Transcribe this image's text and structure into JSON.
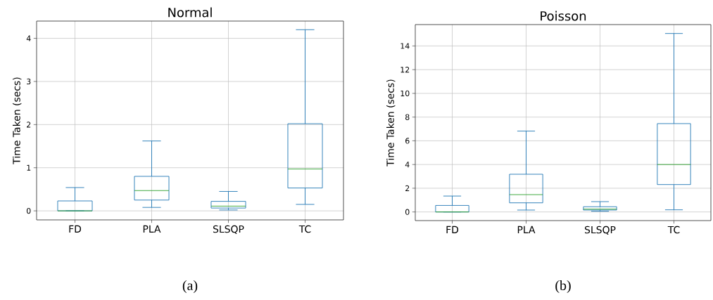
{
  "chart_data": [
    {
      "type": "box",
      "title": "Normal",
      "ylabel": "Time Taken (secs)",
      "categories": [
        "FD",
        "PLA",
        "SLSQP",
        "TC"
      ],
      "ylim": [
        -0.21,
        4.4
      ],
      "yticks": [
        0,
        1,
        2,
        3,
        4
      ],
      "grid": true,
      "annotations": [
        "(a)"
      ],
      "series": [
        {
          "color": "#1f77b4",
          "boxes": [
            {
              "low": 0,
              "q1": 0,
              "median": 0,
              "q3": 0.23,
              "high": 0.54
            },
            {
              "low": 0.08,
              "q1": 0.25,
              "median": 0.47,
              "q3": 0.8,
              "high": 1.62
            },
            {
              "low": 0.02,
              "q1": 0.065,
              "median": 0.11,
              "q3": 0.22,
              "high": 0.45
            },
            {
              "low": 0.15,
              "q1": 0.53,
              "median": 0.97,
              "q3": 2.02,
              "high": 4.2
            }
          ]
        }
      ]
    },
    {
      "type": "box",
      "title": "Poisson",
      "ylabel": "Time Taken (secs)",
      "categories": [
        "FD",
        "PLA",
        "SLSQP",
        "TC"
      ],
      "ylim": [
        -0.73,
        15.8
      ],
      "yticks": [
        0,
        2,
        4,
        6,
        8,
        10,
        12,
        14
      ],
      "grid": true,
      "annotations": [
        "(b)"
      ],
      "series": [
        {
          "color": "#1f77b4",
          "boxes": [
            {
              "low": 0,
              "q1": 0,
              "median": 0,
              "q3": 0.55,
              "high": 1.34
            },
            {
              "low": 0.16,
              "q1": 0.77,
              "median": 1.46,
              "q3": 3.18,
              "high": 6.82
            },
            {
              "low": 0.06,
              "q1": 0.16,
              "median": 0.24,
              "q3": 0.44,
              "high": 0.87
            },
            {
              "low": 0.18,
              "q1": 2.31,
              "median": 4.0,
              "q3": 7.45,
              "high": 15.05
            }
          ]
        }
      ]
    }
  ]
}
